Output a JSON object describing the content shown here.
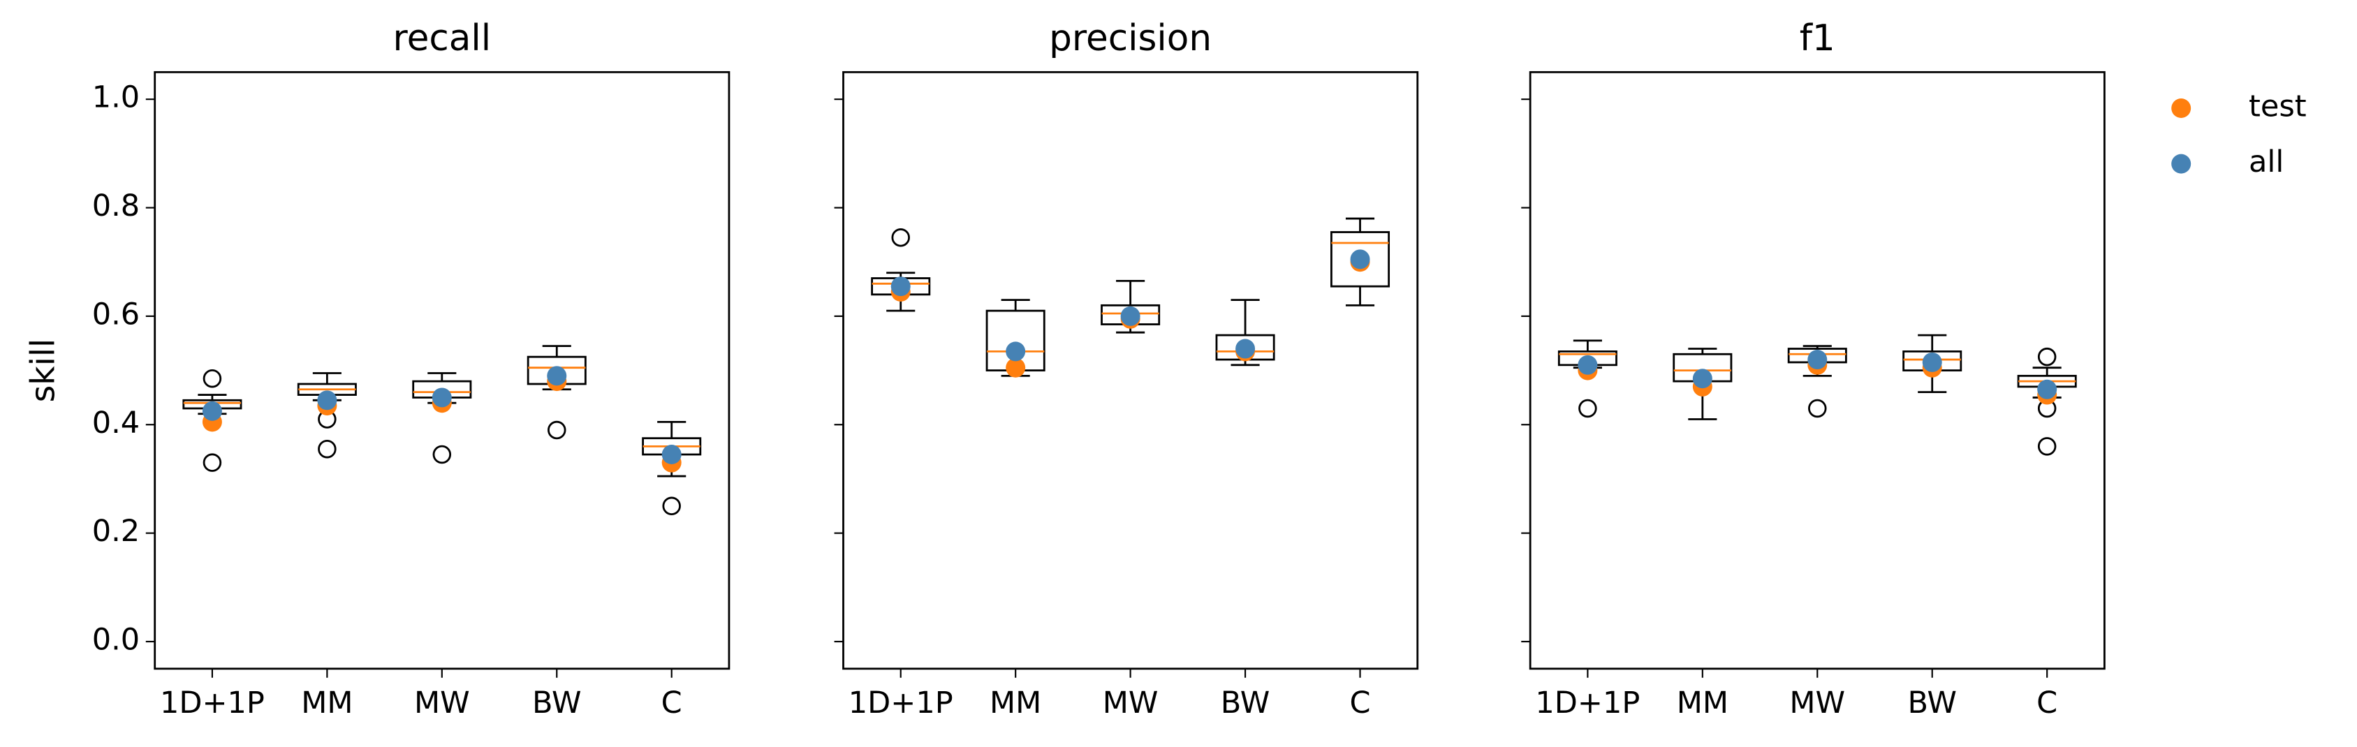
{
  "legend": [
    {
      "name": "test",
      "color": "#ff7f0e"
    },
    {
      "name": "all",
      "color": "#4682b4"
    }
  ],
  "chart_data": [
    {
      "type": "box",
      "title": "recall",
      "ylabel": "skill",
      "categories": [
        "1D+1P",
        "MM",
        "MW",
        "BW",
        "C"
      ],
      "boxes": [
        {
          "whislo": 0.42,
          "q1": 0.43,
          "med": 0.44,
          "q3": 0.445,
          "whishi": 0.455,
          "fliers": [
            0.485,
            0.33
          ]
        },
        {
          "whislo": 0.445,
          "q1": 0.455,
          "med": 0.465,
          "q3": 0.475,
          "whishi": 0.495,
          "fliers": [
            0.41,
            0.355
          ]
        },
        {
          "whislo": 0.44,
          "q1": 0.45,
          "med": 0.46,
          "q3": 0.48,
          "whishi": 0.495,
          "fliers": [
            0.345
          ]
        },
        {
          "whislo": 0.465,
          "q1": 0.475,
          "med": 0.505,
          "q3": 0.525,
          "whishi": 0.545,
          "fliers": [
            0.39
          ]
        },
        {
          "whislo": 0.305,
          "q1": 0.345,
          "med": 0.36,
          "q3": 0.375,
          "whishi": 0.405,
          "fliers": [
            0.25
          ]
        }
      ],
      "series": [
        {
          "values": [
            0.405,
            0.435,
            0.44,
            0.48,
            0.33
          ]
        },
        {
          "values": [
            0.425,
            0.445,
            0.45,
            0.49,
            0.345
          ]
        }
      ],
      "ylim": [
        -0.05,
        1.05
      ],
      "yticks": [
        {
          "value": 0,
          "label": "0.0"
        },
        {
          "value": 0.2,
          "label": "0.2"
        },
        {
          "value": 0.4,
          "label": "0.4"
        },
        {
          "value": 0.6,
          "label": "0.6"
        },
        {
          "value": 0.8,
          "label": "0.8"
        },
        {
          "value": 1,
          "label": "1.0"
        }
      ]
    },
    {
      "type": "box",
      "title": "precision",
      "categories": [
        "1D+1P",
        "MM",
        "MW",
        "BW",
        "C"
      ],
      "boxes": [
        {
          "whislo": 0.61,
          "q1": 0.64,
          "med": 0.66,
          "q3": 0.67,
          "whishi": 0.68,
          "fliers": [
            0.745
          ]
        },
        {
          "whislo": 0.49,
          "q1": 0.5,
          "med": 0.535,
          "q3": 0.61,
          "whishi": 0.63,
          "fliers": []
        },
        {
          "whislo": 0.57,
          "q1": 0.585,
          "med": 0.605,
          "q3": 0.62,
          "whishi": 0.665,
          "fliers": []
        },
        {
          "whislo": 0.51,
          "q1": 0.52,
          "med": 0.535,
          "q3": 0.565,
          "whishi": 0.63,
          "fliers": []
        },
        {
          "whislo": 0.62,
          "q1": 0.655,
          "med": 0.735,
          "q3": 0.755,
          "whishi": 0.78,
          "fliers": []
        }
      ],
      "series": [
        {
          "values": [
            0.645,
            0.505,
            0.595,
            0.535,
            0.7
          ]
        },
        {
          "values": [
            0.655,
            0.535,
            0.6,
            0.54,
            0.705
          ]
        }
      ],
      "ylim": [
        -0.05,
        1.05
      ],
      "yticks": [
        0,
        0.2,
        0.4,
        0.6,
        0.8,
        1
      ]
    },
    {
      "type": "box",
      "title": "f1",
      "categories": [
        "1D+1P",
        "MM",
        "MW",
        "BW",
        "C"
      ],
      "boxes": [
        {
          "whislo": 0.505,
          "q1": 0.51,
          "med": 0.53,
          "q3": 0.535,
          "whishi": 0.555,
          "fliers": [
            0.43
          ]
        },
        {
          "whislo": 0.41,
          "q1": 0.48,
          "med": 0.5,
          "q3": 0.53,
          "whishi": 0.54,
          "fliers": []
        },
        {
          "whislo": 0.49,
          "q1": 0.515,
          "med": 0.53,
          "q3": 0.54,
          "whishi": 0.545,
          "fliers": [
            0.43
          ]
        },
        {
          "whislo": 0.46,
          "q1": 0.5,
          "med": 0.52,
          "q3": 0.535,
          "whishi": 0.565,
          "fliers": []
        },
        {
          "whislo": 0.45,
          "q1": 0.47,
          "med": 0.48,
          "q3": 0.49,
          "whishi": 0.505,
          "fliers": [
            0.525,
            0.43,
            0.36
          ]
        }
      ],
      "series": [
        {
          "values": [
            0.5,
            0.47,
            0.51,
            0.505,
            0.455
          ]
        },
        {
          "values": [
            0.51,
            0.485,
            0.52,
            0.515,
            0.465
          ]
        }
      ],
      "ylim": [
        -0.05,
        1.05
      ],
      "yticks": [
        0,
        0.2,
        0.4,
        0.6,
        0.8,
        1
      ]
    }
  ]
}
